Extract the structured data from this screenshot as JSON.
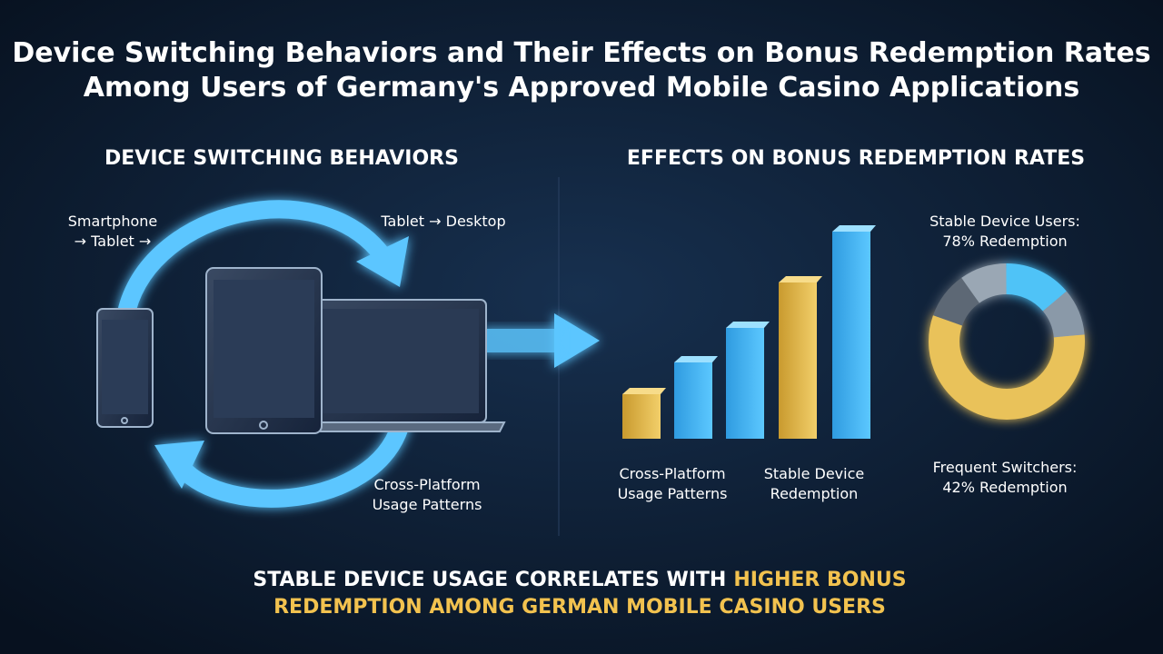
{
  "title": [
    "Device Switching Behaviors and Their Effects on Bonus Redemption Rates",
    "Among Users of Germany's Approved Mobile Casino Applications"
  ],
  "left": {
    "heading": "DEVICE SWITCHING BEHAVIORS",
    "labels": [
      [
        "Smartphone",
        "→ Tablet →"
      ],
      [
        "Tablet → Desktop"
      ],
      [
        "Cross-Platform",
        "Usage Patterns"
      ]
    ]
  },
  "right": {
    "heading": "EFFECTS ON BONUS REDEMPTION RATES",
    "bar_labels": [
      [
        "Cross-Platform",
        "Usage Patterns"
      ],
      [
        "Stable Device",
        "Redemption"
      ]
    ],
    "donut_labels": [
      [
        "Stable Device Users:",
        "78% Redemption"
      ],
      [
        "Frequent Switchers:",
        "42% Redemption"
      ]
    ]
  },
  "footer": [
    "STABLE DEVICE USAGE CORRELATES WITH",
    "HIGHER BONUS",
    "REDEMPTION AMONG GERMAN MOBILE CASINO USERS"
  ]
}
